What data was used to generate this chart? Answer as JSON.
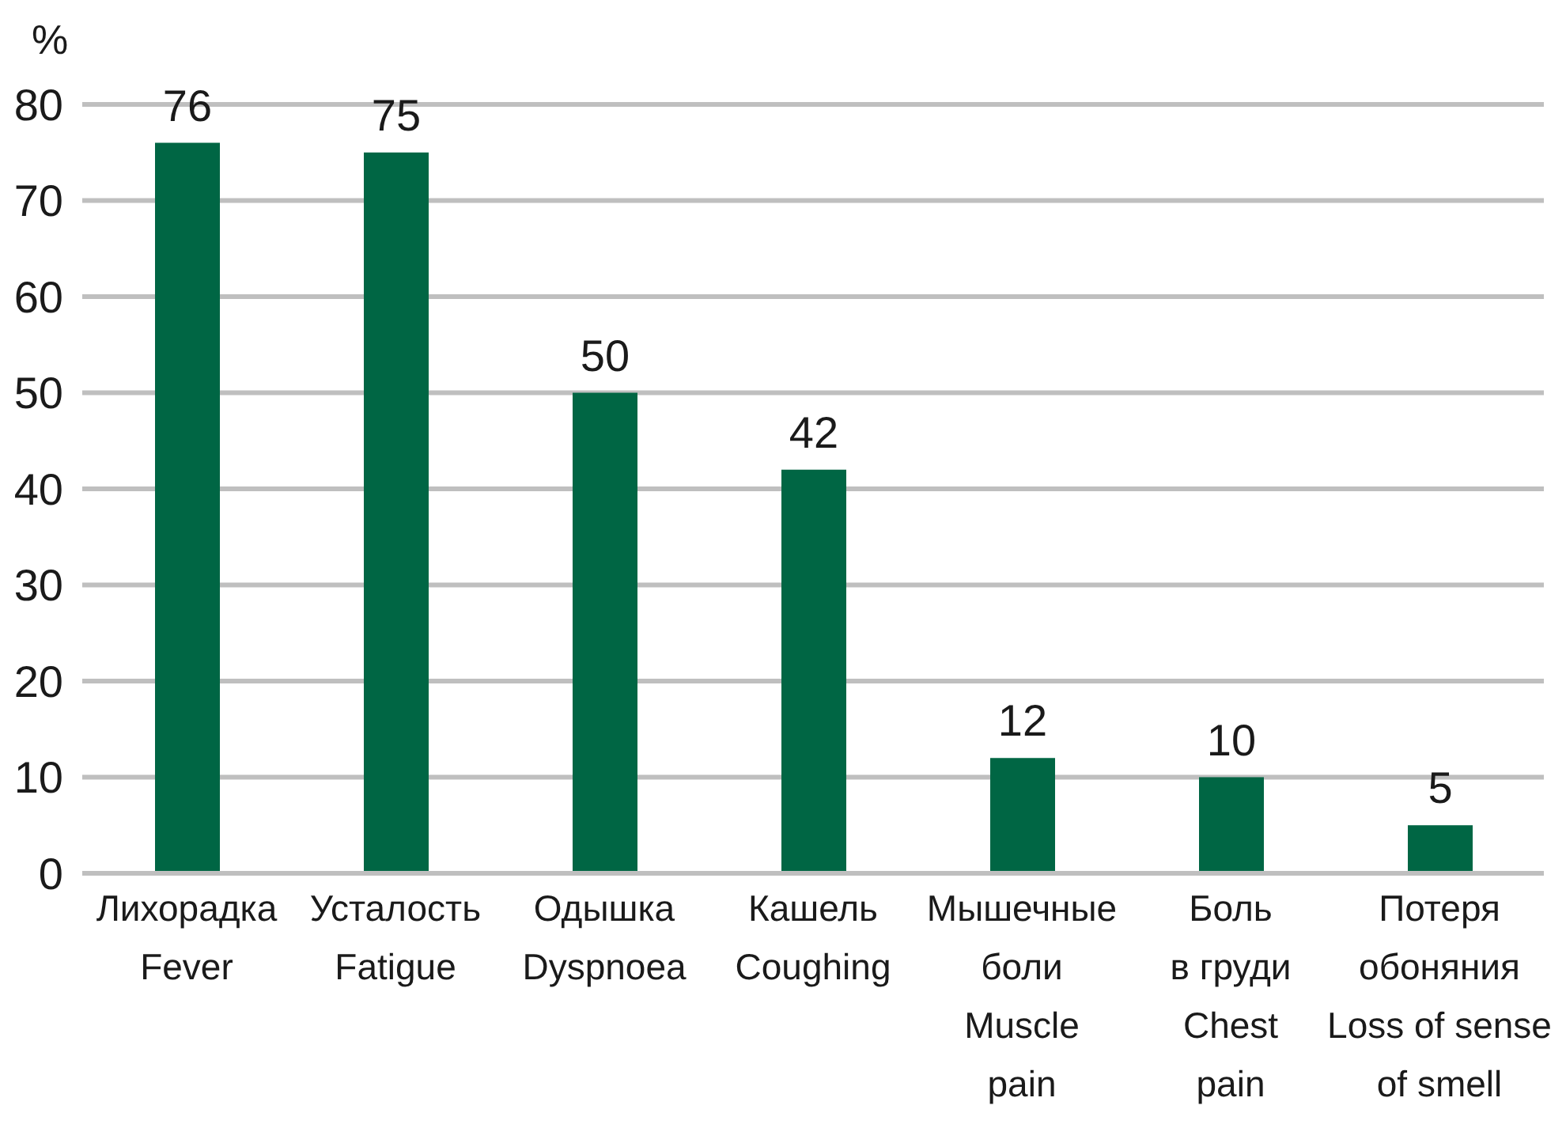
{
  "chart_data": {
    "type": "bar",
    "ylabel": "%",
    "categories": [
      "Лихорадка\nFever",
      "Усталость\nFatigue",
      "Одышка\nDyspnoea",
      "Кашель\nCoughing",
      "Мышечные\nболи\nMuscle\npain",
      "Боль\nв груди\nChest\npain",
      "Потеря\nобоняния\nLoss of sense\nof smell"
    ],
    "values": [
      76,
      75,
      50,
      42,
      12,
      10,
      5
    ],
    "color": "#006644",
    "ylim": [
      0,
      80
    ],
    "yticks": [
      0,
      10,
      20,
      30,
      40,
      50,
      60,
      70,
      80
    ],
    "grid": "y",
    "data_labels": true
  }
}
